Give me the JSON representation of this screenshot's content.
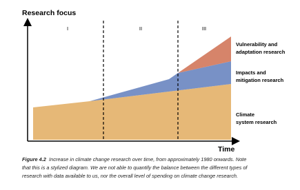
{
  "figure": {
    "y_axis_label": "Research focus",
    "x_axis_label": "Time",
    "phases": [
      "I",
      "II",
      "III"
    ],
    "areas": [
      {
        "label_lines": [
          "Vulnerability and",
          "adaptation research"
        ]
      },
      {
        "label_lines": [
          "Impacts and",
          "mitigation research"
        ]
      },
      {
        "label_lines": [
          "Climate",
          "system research"
        ]
      }
    ]
  },
  "caption": {
    "figure_label": "Figure 4.2",
    "lines": [
      "Increase in climate change research over time, from approximately 1980 onwards.  Note",
      "that this is a stylized diagram.  We are not able to quantify the balance between the different types of",
      "research with data available to us, nor the overall level of spending on climate change research."
    ]
  }
}
